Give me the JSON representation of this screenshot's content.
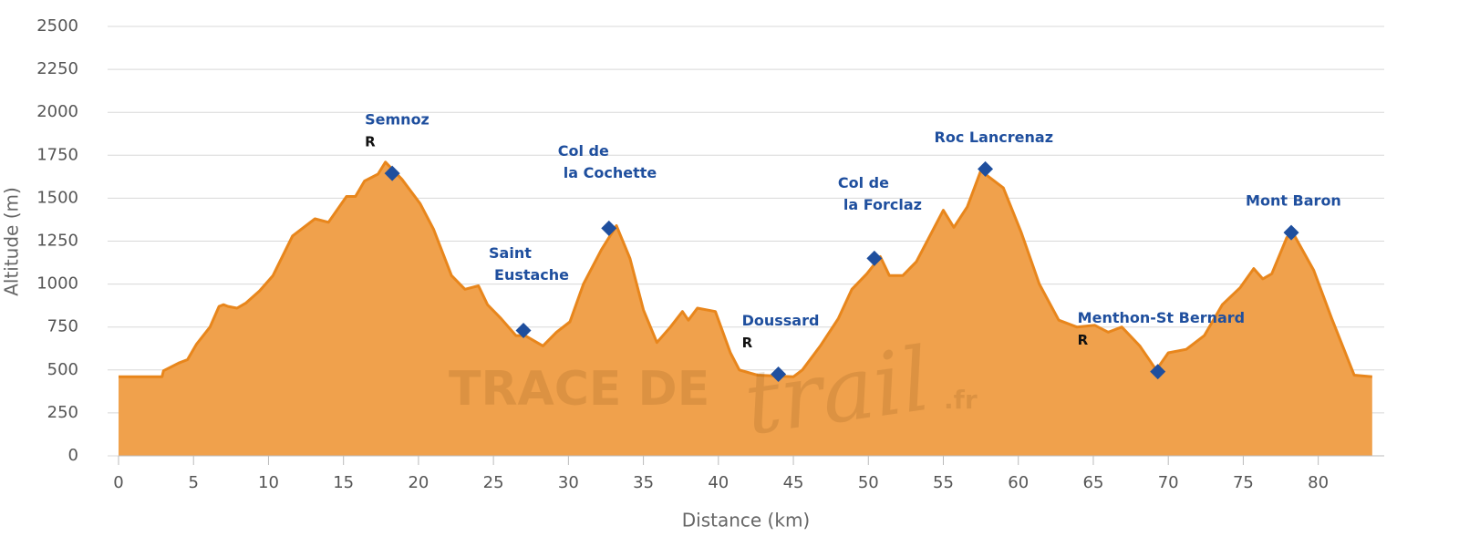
{
  "chart_data": {
    "type": "area",
    "xlabel": "Distance (km)",
    "ylabel": "Altitude (m)",
    "watermark": [
      "TRACE DE",
      "trail",
      ".fr"
    ],
    "color": "#f0a14c",
    "line_color": "#e8861c",
    "marker_color": "#1f4f9e",
    "grid": true,
    "xlim": [
      0,
      84.4
    ],
    "ylim": [
      0,
      2500
    ],
    "xticks": [
      0,
      5,
      10,
      15,
      20,
      25,
      30,
      35,
      40,
      45,
      50,
      55,
      60,
      65,
      70,
      75,
      80
    ],
    "yticks": [
      0,
      250,
      500,
      750,
      1000,
      1250,
      1500,
      1750,
      2000,
      2250,
      2500
    ],
    "x": [
      0,
      2.9,
      3.0,
      4,
      4.6,
      5.2,
      6.1,
      6.7,
      7,
      7.3,
      7.9,
      8.5,
      9.4,
      10.3,
      11.6,
      13.1,
      14,
      15.2,
      15.8,
      16.4,
      17.3,
      17.8,
      18.9,
      20.1,
      21,
      22.2,
      23.1,
      24,
      24.6,
      25.5,
      26.5,
      27.1,
      28.3,
      29.2,
      30.1,
      31,
      32.2,
      33.2,
      34.1,
      35,
      35.9,
      36.8,
      37.6,
      38,
      38.6,
      39.8,
      40.8,
      41.4,
      42.6,
      45,
      45.6,
      46.8,
      48,
      48.9,
      49.9,
      50.8,
      51.4,
      52.3,
      53.2,
      54.1,
      55,
      55.7,
      56.6,
      57.5,
      58.1,
      59,
      60.2,
      61.4,
      62.7,
      63.9,
      65.1,
      66,
      66.9,
      68.1,
      69.2,
      70,
      71.2,
      72.4,
      73.6,
      74.8,
      75.7,
      76.3,
      76.9,
      77.9,
      78.3,
      79.7,
      80.9,
      82.4,
      83.6
    ],
    "values": [
      460,
      460,
      495,
      540,
      560,
      650,
      750,
      870,
      880,
      870,
      860,
      890,
      960,
      1050,
      1280,
      1380,
      1360,
      1510,
      1510,
      1600,
      1640,
      1710,
      1610,
      1470,
      1320,
      1050,
      970,
      990,
      880,
      800,
      700,
      700,
      640,
      720,
      780,
      1000,
      1200,
      1340,
      1150,
      850,
      660,
      750,
      840,
      790,
      860,
      840,
      600,
      500,
      470,
      460,
      500,
      640,
      800,
      970,
      1060,
      1160,
      1050,
      1050,
      1130,
      1280,
      1430,
      1330,
      1450,
      1660,
      1620,
      1560,
      1300,
      1000,
      790,
      750,
      760,
      720,
      750,
      640,
      500,
      600,
      620,
      700,
      880,
      980,
      1090,
      1030,
      1060,
      1270,
      1300,
      1080,
      800,
      470,
      460
    ],
    "waypoints": [
      {
        "label": [
          "Semnoz"
        ],
        "refuel": "R",
        "x": 18.25,
        "y": 1645
      },
      {
        "label": [
          "Saint",
          "Eustache"
        ],
        "x": 27,
        "y": 730
      },
      {
        "label": [
          "Col de",
          "la Cochette"
        ],
        "x": 32.7,
        "y": 1325
      },
      {
        "label": [
          "Doussard"
        ],
        "refuel": "R",
        "x": 44,
        "y": 475
      },
      {
        "label": [
          "Col de",
          "la Forclaz"
        ],
        "x": 50.4,
        "y": 1150
      },
      {
        "label": [
          "Roc Lancrenaz"
        ],
        "x": 57.8,
        "y": 1670
      },
      {
        "label": [
          "Menthon-St Bernard"
        ],
        "refuel": "R",
        "x": 69.3,
        "y": 490
      },
      {
        "label": [
          "Mont Baron"
        ],
        "x": 78.2,
        "y": 1300
      }
    ]
  }
}
